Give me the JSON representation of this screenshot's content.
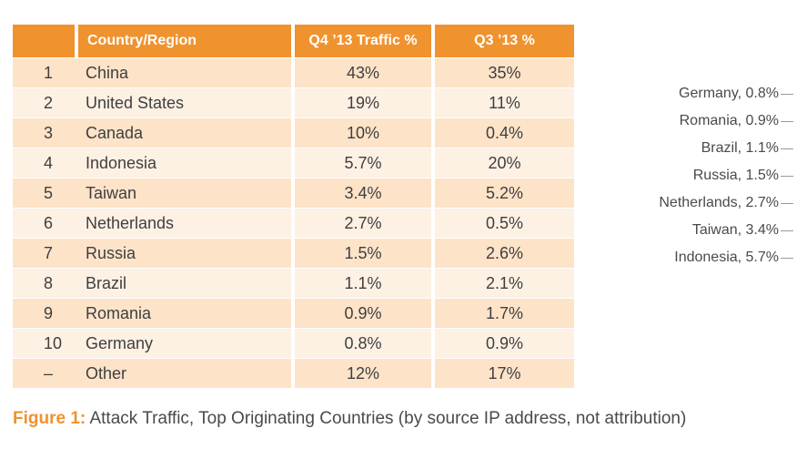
{
  "chart_data": [
    {
      "type": "table",
      "columns": [
        "",
        "Country/Region",
        "Q4 ’13 Traffic %",
        "Q3 ’13 %"
      ],
      "rows": [
        [
          "1",
          "China",
          "43%",
          "35%"
        ],
        [
          "2",
          "United States",
          "19%",
          "11%"
        ],
        [
          "3",
          "Canada",
          "10%",
          "0.4%"
        ],
        [
          "4",
          "Indonesia",
          "5.7%",
          "20%"
        ],
        [
          "5",
          "Taiwan",
          "3.4%",
          "5.2%"
        ],
        [
          "6",
          "Netherlands",
          "2.7%",
          "0.5%"
        ],
        [
          "7",
          "Russia",
          "1.5%",
          "2.6%"
        ],
        [
          "8",
          "Brazil",
          "1.1%",
          "2.1%"
        ],
        [
          "9",
          "Romania",
          "0.9%",
          "1.7%"
        ],
        [
          "10",
          "Germany",
          "0.8%",
          "0.9%"
        ],
        [
          "–",
          "Other",
          "12%",
          "17%"
        ]
      ]
    },
    {
      "type": "pie",
      "labels": [
        "Germany, 0.8%",
        "Romania, 0.9%",
        "Brazil, 1.1%",
        "Russia, 1.5%",
        "Netherlands, 2.7%",
        "Taiwan, 3.4%",
        "Indonesia, 5.7%"
      ]
    }
  ],
  "caption": {
    "label": "Figure 1:",
    "text": " Attack Traffic, Top Originating Countries (by source IP address, not attribution)"
  },
  "colors": {
    "header": "#f0922e",
    "row_dark": "#fde3c8",
    "row_light": "#fdf1e4",
    "caption_label": "#f0922e"
  }
}
